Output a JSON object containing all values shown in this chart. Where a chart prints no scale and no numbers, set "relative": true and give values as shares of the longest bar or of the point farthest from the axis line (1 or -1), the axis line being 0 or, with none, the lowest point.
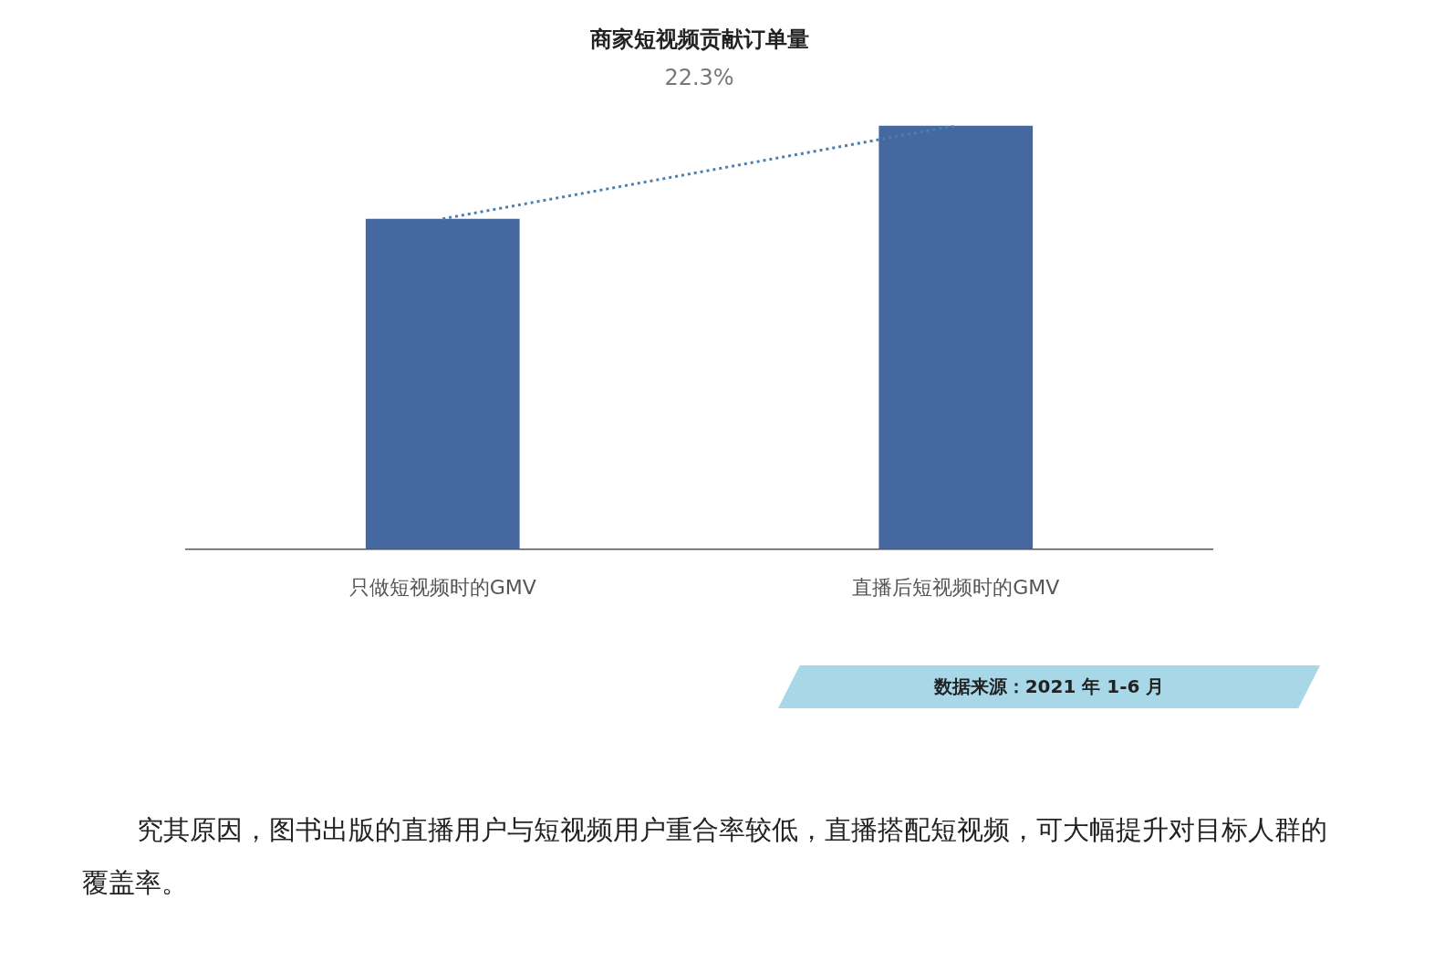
{
  "chart_data": {
    "type": "bar",
    "title": "商家短视频贡献订单量",
    "subtitle": "22.3%",
    "categories": [
      "只做短视频时的GMV",
      "直播后短视频时的GMV"
    ],
    "relative": true,
    "series": [
      {
        "color": "#44689f",
        "values": [
          0.78,
          1
        ]
      },
      {
        "type": "line",
        "color": "#4a7fae",
        "values": [
          0.78,
          1
        ],
        "line_style": "dotted",
        "marker": "none"
      }
    ],
    "annotations": [
      "数据来源：2021 年 1-6 月",
      "究其原因，图书出版的直播用户与短视频用户重合率较低，直播搭配短视频，可大幅提升对目标人群的覆盖率。"
    ]
  }
}
